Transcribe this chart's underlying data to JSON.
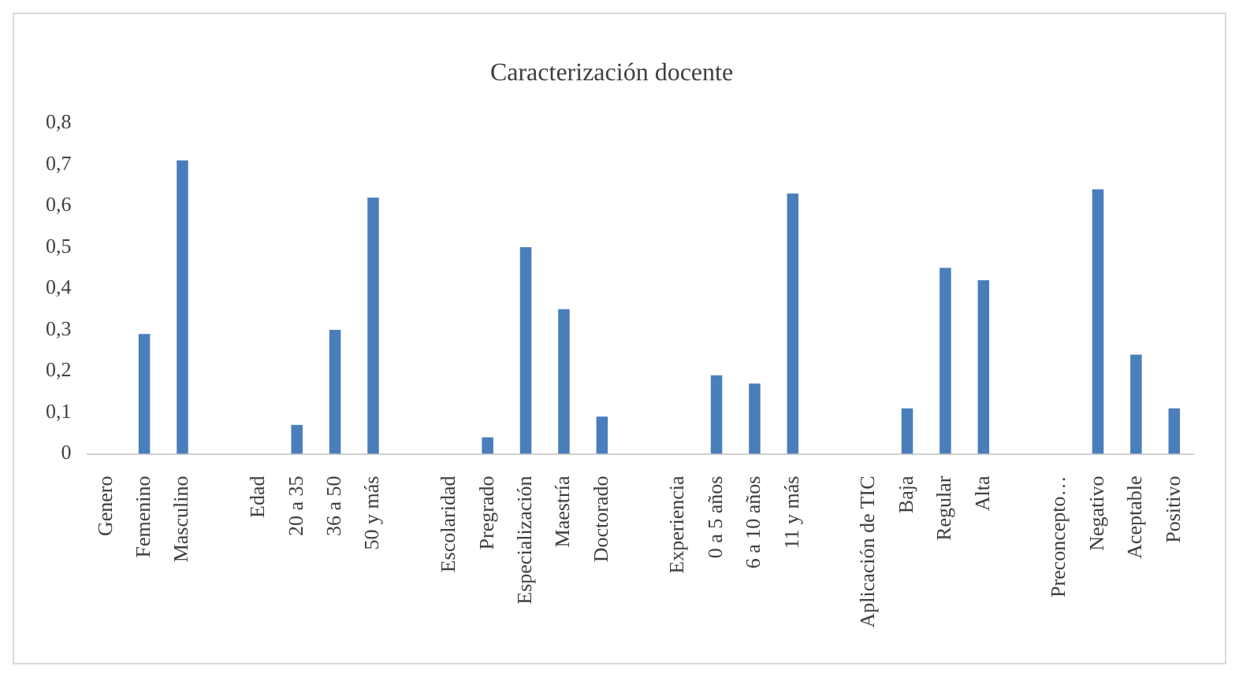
{
  "chart_data": {
    "type": "bar",
    "title": "Caracterización docente",
    "categories": [
      "Genero",
      "Femenino",
      "Masculino",
      null,
      "Edad",
      "20 a 35",
      "36 a 50",
      "50 y más",
      null,
      "Escolaridad",
      "Pregrado",
      "Especialización",
      "Maestría",
      "Doctorado",
      null,
      "Experiencia",
      "0 a 5 años",
      "6 a 10 años",
      "11 y más",
      null,
      "Aplicación de TIC",
      "Baja",
      "Regular",
      "Alta",
      null,
      "Preconcepto…",
      "Negativo",
      "Aceptable",
      "Positivo"
    ],
    "values": [
      null,
      0.29,
      0.71,
      null,
      null,
      0.07,
      0.3,
      0.62,
      null,
      null,
      0.04,
      0.5,
      0.35,
      0.09,
      null,
      null,
      0.19,
      0.17,
      0.63,
      null,
      null,
      0.11,
      0.45,
      0.42,
      null,
      null,
      0.64,
      0.24,
      0.11
    ],
    "color": "#4a7ebb",
    "ylim": [
      0,
      0.8
    ],
    "yticks": [
      0,
      {
        "value": 0.1,
        "label": "0,1"
      },
      {
        "value": 0.2,
        "label": "0,2"
      },
      {
        "value": 0.3,
        "label": "0,3"
      },
      {
        "value": 0.4,
        "label": "0,4"
      },
      {
        "value": 0.5,
        "label": "0,5"
      },
      {
        "value": 0.6,
        "label": "0,6"
      },
      {
        "value": 0.7,
        "label": "0,7"
      },
      {
        "value": 0.8,
        "label": "0,8"
      }
    ],
    "grid": false,
    "legend": false
  }
}
